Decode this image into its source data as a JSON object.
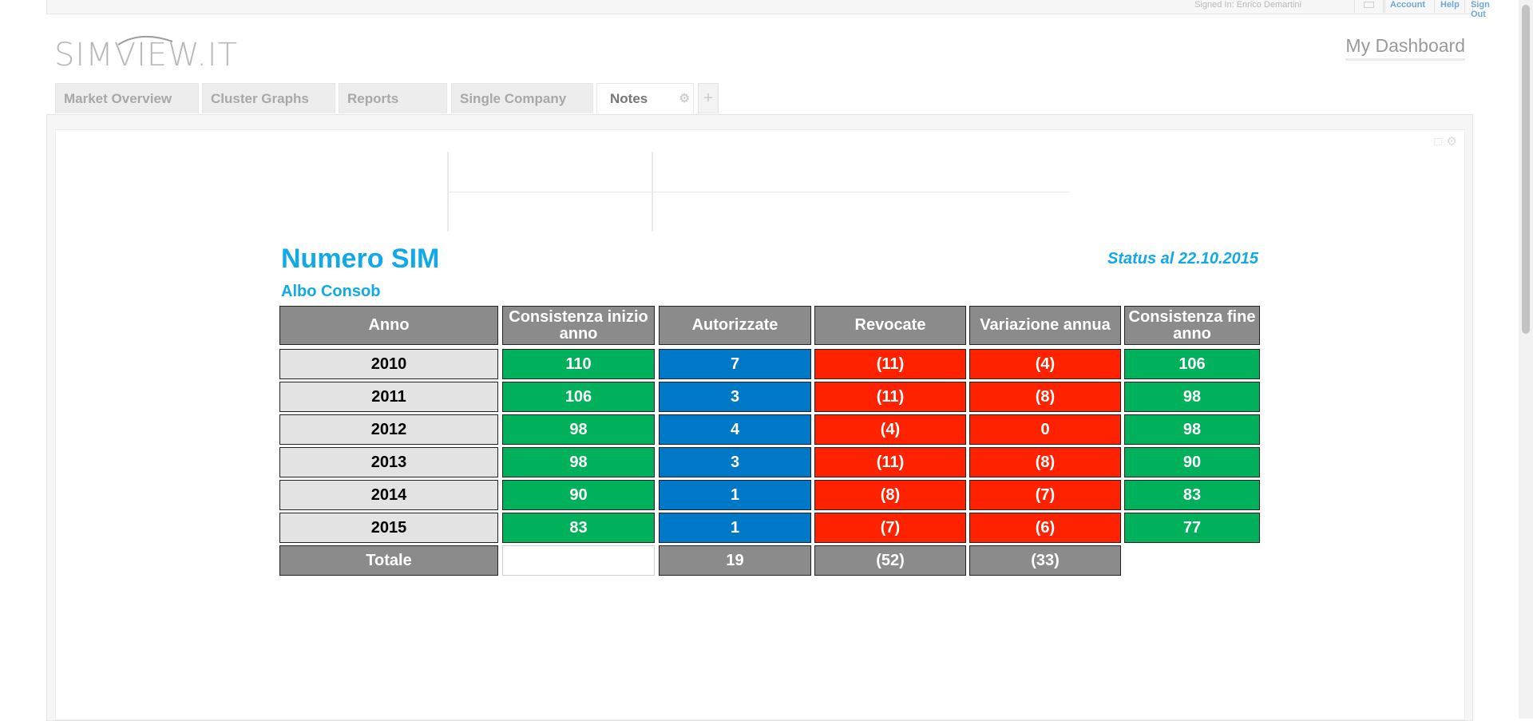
{
  "topbar": {
    "signed_in": "Signed In: Enrico Demartini",
    "links": [
      "Account",
      "Help",
      "Sign Out"
    ]
  },
  "logo": {
    "text": "SIMVIEW.IT"
  },
  "header": {
    "dashboard_title": "My Dashboard"
  },
  "tabs": [
    {
      "label": "Market Overview"
    },
    {
      "label": "Cluster Graphs"
    },
    {
      "label": "Reports"
    },
    {
      "label": "Single Company"
    },
    {
      "label": "Notes",
      "active": true
    }
  ],
  "report": {
    "title": "Numero SIM",
    "subtitle": "Albo Consob",
    "status": "Status al 22.10.2015",
    "columns": [
      "Anno",
      "Consistenza inizio anno",
      "Autorizzate",
      "Revocate",
      "Variazione annua",
      "Consistenza fine anno"
    ],
    "rows": [
      [
        "2010",
        "110",
        "7",
        "(11)",
        "(4)",
        "106"
      ],
      [
        "2011",
        "106",
        "3",
        "(11)",
        "(8)",
        "98"
      ],
      [
        "2012",
        "98",
        "4",
        "(4)",
        "0",
        "98"
      ],
      [
        "2013",
        "98",
        "3",
        "(11)",
        "(8)",
        "90"
      ],
      [
        "2014",
        "90",
        "1",
        "(8)",
        "(7)",
        "83"
      ],
      [
        "2015",
        "83",
        "1",
        "(7)",
        "(6)",
        "77"
      ]
    ],
    "total": {
      "label": "Totale",
      "autorizzate": "19",
      "revocate": "(52)",
      "variazione": "(33)"
    },
    "colors": {
      "header": "#8b8b8b",
      "year": "#e3e3e3",
      "green": "#00b05a",
      "blue": "#0078c8",
      "red": "#ff2200",
      "accent_text": "#12a9e6"
    }
  }
}
